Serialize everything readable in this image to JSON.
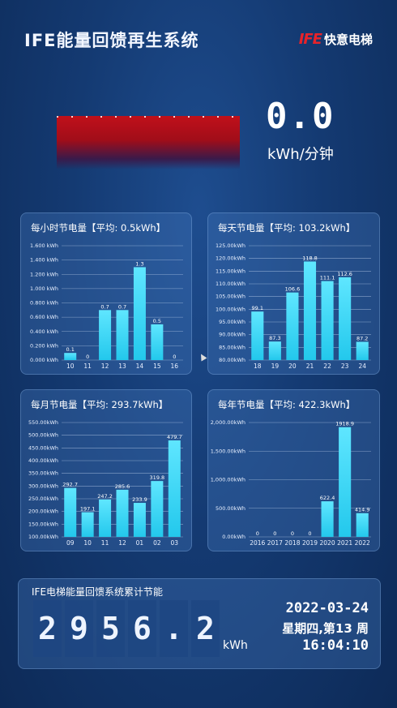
{
  "header": {
    "title": "IFE能量回馈再生系统",
    "brand_mark": "IFE",
    "brand_name": "快意电梯"
  },
  "meter": {
    "value": "0.0",
    "unit": "kWh/分钟"
  },
  "chart_data": [
    {
      "type": "bar",
      "title": "每小时节电量【平均: 0.5kWh】",
      "categories": [
        "10",
        "11",
        "12",
        "13",
        "14",
        "15",
        "16"
      ],
      "values": [
        0.1,
        0,
        0.7,
        0.7,
        1.3,
        0.5,
        0
      ],
      "labels": [
        "0.1",
        "0",
        "0.7",
        "0.7",
        "1.3",
        "0.5",
        "0"
      ],
      "ylim": [
        0,
        1.6
      ],
      "yticks": [
        0,
        0.2,
        0.4,
        0.6,
        0.8,
        1.0,
        1.2,
        1.4,
        1.6
      ],
      "ytick_labels": [
        "0.000 kWh",
        "0.200 kWh",
        "0.400 kWh",
        "0.600 kWh",
        "0.800 kWh",
        "1.000 kWh",
        "1.200 kWh",
        "1.400 kWh",
        "1.600 kWh"
      ],
      "grid": true
    },
    {
      "type": "bar",
      "title": "每天节电量【平均: 103.2kWh】",
      "categories": [
        "18",
        "19",
        "20",
        "21",
        "22",
        "23",
        "24"
      ],
      "values": [
        99.1,
        87.3,
        106.6,
        118.8,
        111.1,
        112.6,
        87.2
      ],
      "labels": [
        "99.1",
        "87.3",
        "106.6",
        "118.8",
        "111.1",
        "112.6",
        "87.2"
      ],
      "ylim": [
        80,
        125
      ],
      "yticks": [
        80,
        85,
        90,
        95,
        100,
        105,
        110,
        115,
        120,
        125
      ],
      "ytick_labels": [
        "80.00kWh",
        "85.00kWh",
        "90.00kWh",
        "95.00kWh",
        "100.00kWh",
        "105.00kWh",
        "110.00kWh",
        "115.00kWh",
        "120.00kWh",
        "125.00kWh"
      ],
      "grid": true
    },
    {
      "type": "bar",
      "title": "每月节电量【平均: 293.7kWh】",
      "categories": [
        "09",
        "10",
        "11",
        "12",
        "01",
        "02",
        "03"
      ],
      "values": [
        292.7,
        197.1,
        247.2,
        285.6,
        233.9,
        319.8,
        479.7
      ],
      "labels": [
        "292.7",
        "197.1",
        "247.2",
        "285.6",
        "233.9",
        "319.8",
        "479.7"
      ],
      "ylim": [
        100,
        550
      ],
      "yticks": [
        100,
        150,
        200,
        250,
        300,
        350,
        400,
        450,
        500,
        550
      ],
      "ytick_labels": [
        "100.00kWh",
        "150.00kWh",
        "200.00kWh",
        "250.00kWh",
        "300.00kWh",
        "350.00kWh",
        "400.00kWh",
        "450.00kWh",
        "500.00kWh",
        "550.00kWh"
      ],
      "grid": true
    },
    {
      "type": "bar",
      "title": "每年节电量【平均: 422.3kWh】",
      "categories": [
        "2016",
        "2017",
        "2018",
        "2019",
        "2020",
        "2021",
        "2022"
      ],
      "values": [
        0,
        0,
        0,
        0,
        622.4,
        1918.9,
        414.9
      ],
      "labels": [
        "0",
        "0",
        "0",
        "0",
        "622.4",
        "1918.9",
        "414.9"
      ],
      "ylim": [
        0,
        2000
      ],
      "yticks": [
        0,
        500,
        1000,
        1500,
        2000
      ],
      "ytick_labels": [
        "0.00kWh",
        "500.00kWh",
        "1,000.00kWh",
        "1,500.00kWh",
        "2,000.00kWh"
      ],
      "grid": true
    }
  ],
  "bar_color": "#23c8ec",
  "summary": {
    "title": "IFE电梯能量回馈系统累计节能",
    "digits": [
      "2",
      "9",
      "5",
      "6",
      ".",
      "2"
    ],
    "unit": "kWh",
    "date": "2022-03-24",
    "week": "星期四,第13 周",
    "time": "16:04:10"
  }
}
